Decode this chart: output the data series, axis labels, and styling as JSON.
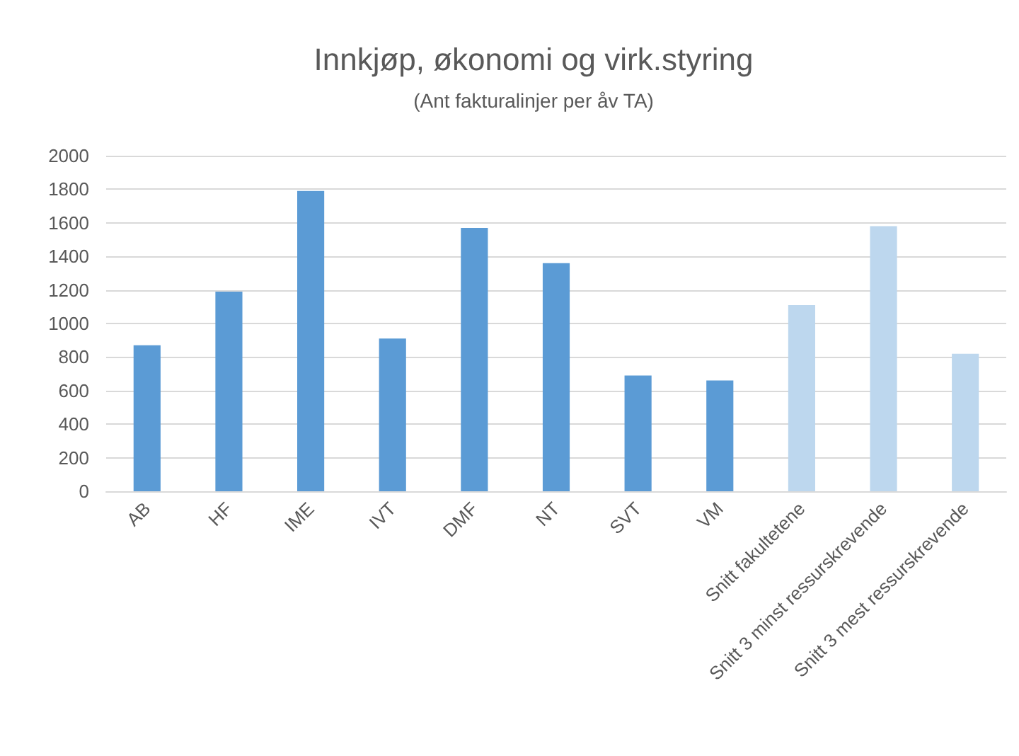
{
  "chart_data": {
    "type": "bar",
    "title": "Innkjøp, økonomi og virk.styring",
    "subtitle": "(Ant fakturalinjer per åv TA)",
    "categories": [
      "AB",
      "HF",
      "IME",
      "IVT",
      "DMF",
      "NT",
      "SVT",
      "VM",
      "Snitt fakultetene",
      "Snitt 3 minst ressurskrevende",
      "Snitt 3 mest ressurskrevende"
    ],
    "values": [
      870,
      1190,
      1790,
      910,
      1570,
      1360,
      690,
      660,
      1110,
      1580,
      820
    ],
    "colors": [
      "#5b9bd5",
      "#5b9bd5",
      "#5b9bd5",
      "#5b9bd5",
      "#5b9bd5",
      "#5b9bd5",
      "#5b9bd5",
      "#5b9bd5",
      "#bdd7ee",
      "#bdd7ee",
      "#bdd7ee"
    ],
    "ylim": [
      0,
      2000
    ],
    "yticks": [
      0,
      200,
      400,
      600,
      800,
      1000,
      1200,
      1400,
      1600,
      1800,
      2000
    ],
    "grid": "y"
  }
}
